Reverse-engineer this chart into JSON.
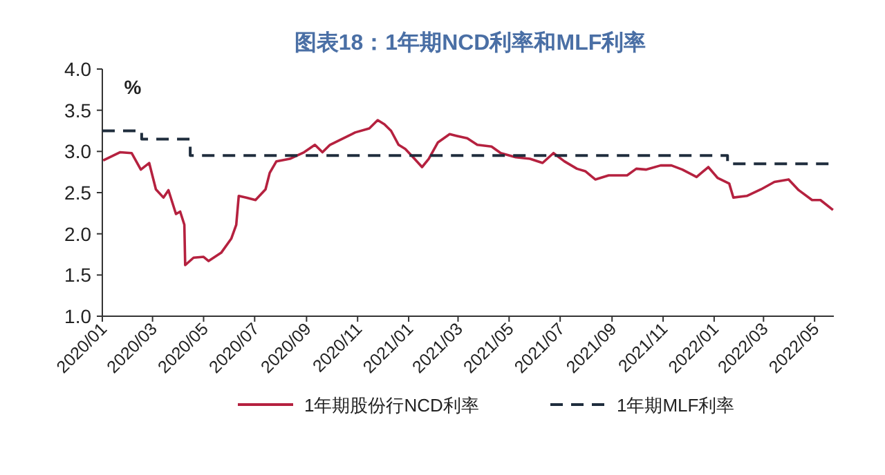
{
  "chart_data": {
    "type": "line",
    "title": "图表18：1年期NCD利率和MLF利率",
    "ylabel": "%",
    "xlim": [
      "2020-01-01",
      "2022-05-24"
    ],
    "xticks": [
      {
        "value": "2020-01",
        "label": "2020/01"
      },
      {
        "value": "2020-03",
        "label": "2020/03"
      },
      {
        "value": "2020-05",
        "label": "2020/05"
      },
      {
        "value": "2020-07",
        "label": "2020/07"
      },
      {
        "value": "2020-09",
        "label": "2020/09"
      },
      {
        "value": "2020-11",
        "label": "2020/11"
      },
      {
        "value": "2021-01",
        "label": "2021/01"
      },
      {
        "value": "2021-03",
        "label": "2021/03"
      },
      {
        "value": "2021-05",
        "label": "2021/05"
      },
      {
        "value": "2021-07",
        "label": "2021/07"
      },
      {
        "value": "2021-09",
        "label": "2021/09"
      },
      {
        "value": "2021-11",
        "label": "2021/11"
      },
      {
        "value": "2022-01",
        "label": "2022/01"
      },
      {
        "value": "2022-03",
        "label": "2022/03"
      },
      {
        "value": "2022-05",
        "label": "2022/05"
      }
    ],
    "ylim": [
      1,
      4
    ],
    "yticks": [
      {
        "value": 1,
        "label": "1.0"
      },
      {
        "value": 1.5,
        "label": "1.5"
      },
      {
        "value": 2,
        "label": "2.0"
      },
      {
        "value": 2.5,
        "label": "2.5"
      },
      {
        "value": 3,
        "label": "3.0"
      },
      {
        "value": 3.5,
        "label": "3.5"
      },
      {
        "value": 4,
        "label": "4.0"
      }
    ],
    "legend": "bottom",
    "grid": false,
    "marker": "none",
    "series": [
      {
        "name": "1年期股份行NCD利率",
        "color": "#b5213f",
        "line_style": "solid",
        "x": [
          "2020-01-02",
          "2020-01-22",
          "2020-02-05",
          "2020-02-16",
          "2020-02-26",
          "2020-03-05",
          "2020-03-14",
          "2020-03-20",
          "2020-03-29",
          "2020-04-03",
          "2020-04-08",
          "2020-04-09",
          "2020-04-19",
          "2020-05-01",
          "2020-05-07",
          "2020-05-22",
          "2020-06-03",
          "2020-06-09",
          "2020-06-12",
          "2020-06-21",
          "2020-07-02",
          "2020-07-14",
          "2020-07-19",
          "2020-07-27",
          "2020-08-12",
          "2020-08-29",
          "2020-09-11",
          "2020-09-20",
          "2020-09-29",
          "2020-10-09",
          "2020-10-29",
          "2020-11-15",
          "2020-11-25",
          "2020-12-03",
          "2020-12-11",
          "2020-12-20",
          "2020-12-28",
          "2021-01-08",
          "2021-01-17",
          "2021-01-25",
          "2021-02-05",
          "2021-02-19",
          "2021-02-27",
          "2021-03-12",
          "2021-03-24",
          "2021-04-10",
          "2021-04-21",
          "2021-05-09",
          "2021-05-26",
          "2021-06-10",
          "2021-06-23",
          "2021-07-06",
          "2021-07-21",
          "2021-07-31",
          "2021-08-12",
          "2021-08-28",
          "2021-09-19",
          "2021-09-30",
          "2021-10-12",
          "2021-10-29",
          "2021-11-11",
          "2021-11-24",
          "2021-12-11",
          "2021-12-25",
          "2022-01-05",
          "2022-01-19",
          "2022-01-24",
          "2022-02-09",
          "2022-02-26",
          "2022-03-14",
          "2022-03-31",
          "2022-04-12",
          "2022-04-28",
          "2022-05-08",
          "2022-05-23"
        ],
        "values": [
          2.89,
          2.99,
          2.98,
          2.78,
          2.86,
          2.54,
          2.44,
          2.53,
          2.24,
          2.27,
          2.11,
          1.62,
          1.71,
          1.72,
          1.67,
          1.77,
          1.94,
          2.11,
          2.46,
          2.44,
          2.41,
          2.54,
          2.74,
          2.88,
          2.91,
          2.99,
          3.08,
          2.99,
          3.08,
          3.13,
          3.23,
          3.28,
          3.38,
          3.33,
          3.25,
          3.08,
          3.03,
          2.91,
          2.81,
          2.91,
          3.11,
          3.21,
          3.19,
          3.16,
          3.08,
          3.06,
          2.98,
          2.93,
          2.91,
          2.86,
          2.98,
          2.88,
          2.79,
          2.76,
          2.66,
          2.71,
          2.71,
          2.79,
          2.78,
          2.83,
          2.83,
          2.78,
          2.69,
          2.81,
          2.68,
          2.61,
          2.44,
          2.46,
          2.54,
          2.63,
          2.66,
          2.53,
          2.41,
          2.41,
          2.29
        ]
      },
      {
        "name": "1年期MLF利率",
        "type": "step",
        "color": "#1f2d3d",
        "line_style": "dashed",
        "x": [
          "2020-01-01",
          "2020-02-17",
          "2020-04-15",
          "2022-01-17",
          "2022-05-24"
        ],
        "values": [
          3.25,
          3.15,
          2.95,
          2.85,
          2.85
        ]
      }
    ]
  }
}
